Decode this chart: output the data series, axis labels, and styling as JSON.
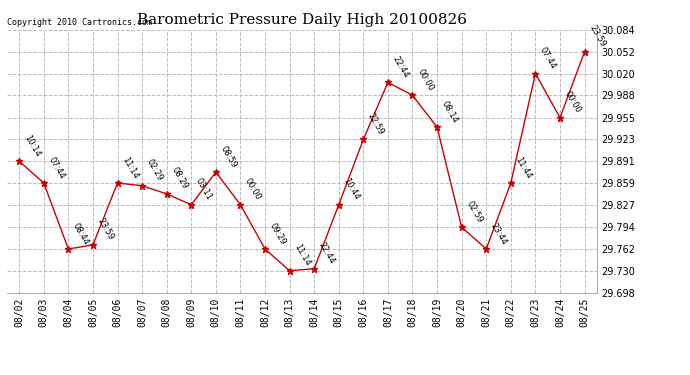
{
  "title": "Barometric Pressure Daily High 20100826",
  "copyright": "Copyright 2010 Cartronics.com",
  "x_labels": [
    "08/02",
    "08/03",
    "08/04",
    "08/05",
    "08/06",
    "08/07",
    "08/08",
    "08/09",
    "08/10",
    "08/11",
    "08/12",
    "08/13",
    "08/14",
    "08/15",
    "08/16",
    "08/17",
    "08/18",
    "08/19",
    "08/20",
    "08/21",
    "08/22",
    "08/23",
    "08/24",
    "08/25"
  ],
  "y_values": [
    29.891,
    29.859,
    29.762,
    29.768,
    29.859,
    29.855,
    29.843,
    29.827,
    29.875,
    29.827,
    29.762,
    29.73,
    29.733,
    29.827,
    29.923,
    30.007,
    29.988,
    29.941,
    29.794,
    29.762,
    29.859,
    30.02,
    29.955,
    30.052
  ],
  "point_labels": [
    "10:14",
    "07:44",
    "08:44",
    "23:59",
    "11:14",
    "02:29",
    "08:29",
    "03:11",
    "08:59",
    "00:00",
    "09:29",
    "11:14",
    "22:44",
    "10:44",
    "22:59",
    "22:44",
    "00:00",
    "08:14",
    "02:59",
    "23:44",
    "11:44",
    "07:44",
    "00:00",
    "23:59"
  ],
  "line_color": "#cc0000",
  "marker_color": "#cc0000",
  "bg_color": "#ffffff",
  "grid_color": "#bbbbbb",
  "ylim_min": 29.698,
  "ylim_max": 30.084,
  "yticks": [
    29.698,
    29.73,
    29.762,
    29.794,
    29.827,
    29.859,
    29.891,
    29.923,
    29.955,
    29.988,
    30.02,
    30.052,
    30.084
  ],
  "title_fontsize": 11,
  "label_fontsize": 6,
  "tick_fontsize": 7,
  "copyright_fontsize": 6
}
